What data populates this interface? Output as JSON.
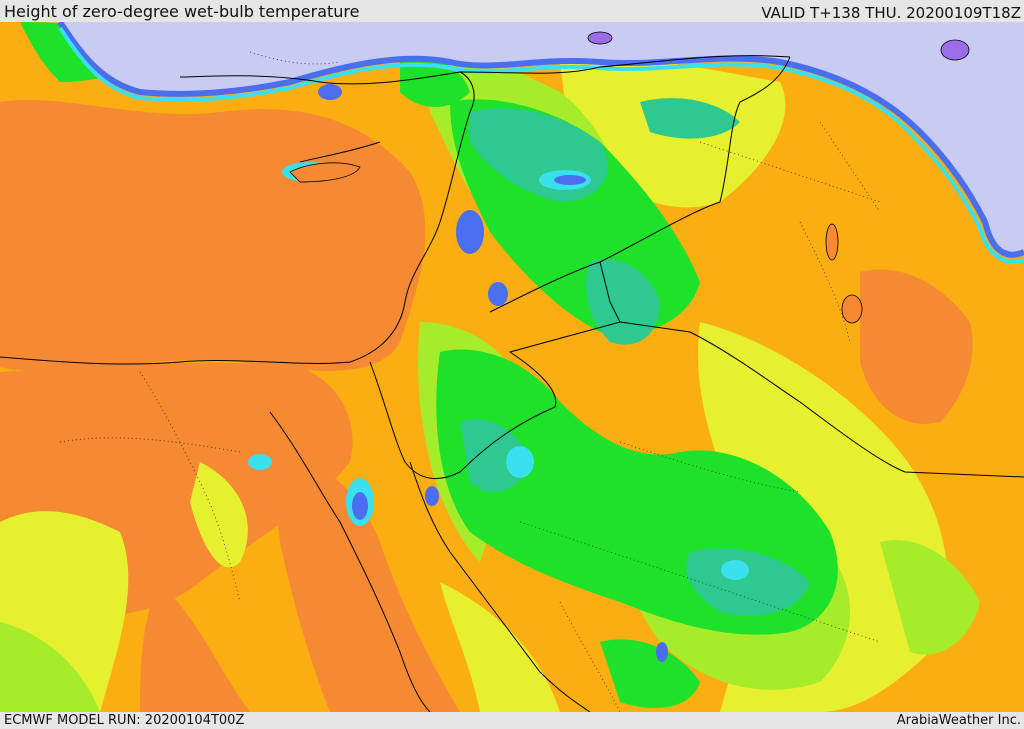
{
  "header": {
    "title": "Height of zero-degree wet-bulb temperature",
    "valid": "VALID T+138 THU. 20200109T18Z"
  },
  "footer": {
    "model_run": "ECMWF MODEL RUN: 20200104T00Z",
    "credit": "ArabiaWeather Inc."
  },
  "colors": {
    "orange_dark": "#f58a32",
    "orange": "#fbae12",
    "yellow": "#e6f02e",
    "yellow_green": "#a6ec2a",
    "green": "#1ee12a",
    "teal": "#2ec98e",
    "cyan": "#3ae0ee",
    "blue": "#4a6ef0",
    "purple": "#9a6ee8",
    "lavender": "#c8ccf2",
    "border": "#000000"
  }
}
